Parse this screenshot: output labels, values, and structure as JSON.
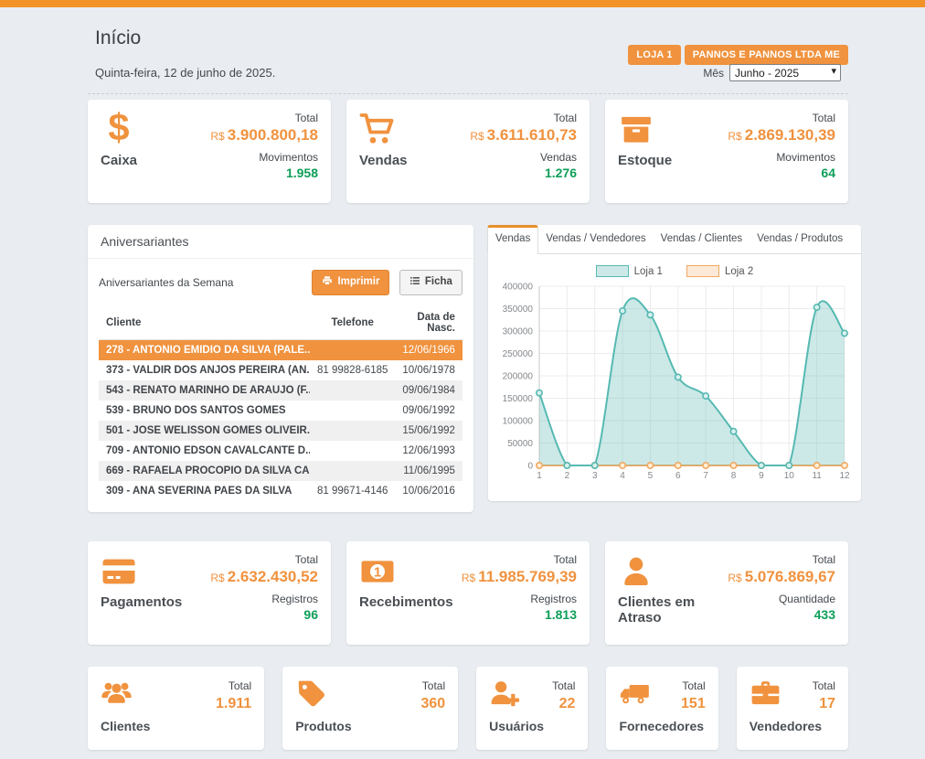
{
  "header": {
    "title": "Início",
    "date": "Quinta-feira, 12 de junho de 2025.",
    "badges": [
      "LOJA 1",
      "PANNOS E PANNOS LTDA ME"
    ],
    "month": {
      "label": "Mês",
      "value": "Junho - 2025"
    }
  },
  "cards_row1": [
    {
      "icon": "dollar-icon",
      "title": "Caixa",
      "total_label": "Total",
      "currency": "R$",
      "total": "3.900.800,18",
      "metric_label": "Movimentos",
      "metric_value": "1.958"
    },
    {
      "icon": "cart-icon",
      "title": "Vendas",
      "total_label": "Total",
      "currency": "R$",
      "total": "3.611.610,73",
      "metric_label": "Vendas",
      "metric_value": "1.276"
    },
    {
      "icon": "archive-icon",
      "title": "Estoque",
      "total_label": "Total",
      "currency": "R$",
      "total": "2.869.130,39",
      "metric_label": "Movimentos",
      "metric_value": "64"
    }
  ],
  "birthdays": {
    "panel_title": "Aniversariantes",
    "subtitle": "Aniversariantes da Semana",
    "print_button": "Imprimir",
    "ficha_button": "Ficha",
    "columns": [
      "Cliente",
      "Telefone",
      "Data de Nasc."
    ],
    "selected_row": 0,
    "rows": [
      {
        "cliente": "278 - ANTONIO EMIDIO DA SILVA (PALE...",
        "telefone": "",
        "data": "12/06/1966"
      },
      {
        "cliente": "373 - VALDIR DOS ANJOS PEREIRA (AN...",
        "telefone": "81 99828-6185",
        "data": "10/06/1978"
      },
      {
        "cliente": "543 - RENATO MARINHO DE ARAUJO (F...",
        "telefone": "",
        "data": "09/06/1984"
      },
      {
        "cliente": "539 - BRUNO DOS SANTOS GOMES",
        "telefone": "",
        "data": "09/06/1992"
      },
      {
        "cliente": "501 - JOSE WELISSON GOMES OLIVEIR...",
        "telefone": "",
        "data": "15/06/1992"
      },
      {
        "cliente": "709 - ANTONIO EDSON CAVALCANTE D...",
        "telefone": "",
        "data": "12/06/1993"
      },
      {
        "cliente": "669 - RAFAELA PROCOPIO DA SILVA CA...",
        "telefone": "",
        "data": "11/06/1995"
      },
      {
        "cliente": "309 - ANA SEVERINA PAES DA SILVA",
        "telefone": "81 99671-4146",
        "data": "10/06/2016"
      }
    ]
  },
  "chart_panel": {
    "tabs": [
      "Vendas",
      "Vendas / Vendedores",
      "Vendas / Clientes",
      "Vendas / Produtos"
    ],
    "active_tab": 0
  },
  "chart_data": {
    "type": "area",
    "x": [
      1,
      2,
      3,
      4,
      5,
      6,
      7,
      8,
      9,
      10,
      11,
      12
    ],
    "series": [
      {
        "name": "Loja 1",
        "values": [
          162000,
          0,
          0,
          345000,
          336000,
          197000,
          155000,
          76000,
          0,
          0,
          353000,
          295000
        ],
        "line_color": "#56b9b2",
        "fill_color": "rgba(109,193,187,0.35)",
        "marker_fill": "#d9f0ee"
      },
      {
        "name": "Loja 2",
        "values": [
          0,
          0,
          0,
          0,
          0,
          0,
          0,
          0,
          0,
          0,
          0,
          0
        ],
        "line_color": "#f3a960",
        "fill_color": "rgba(243,169,96,0.25)",
        "marker_fill": "#fdeed9"
      }
    ],
    "ylim": [
      0,
      400000
    ],
    "ytick_step": 50000,
    "grid": true,
    "legend_position": "top"
  },
  "cards_row2": [
    {
      "icon": "credit-card-icon",
      "title": "Pagamentos",
      "total_label": "Total",
      "currency": "R$",
      "total": "2.632.430,52",
      "metric_label": "Registros",
      "metric_value": "96"
    },
    {
      "icon": "money-bill-icon",
      "title": "Recebimentos",
      "total_label": "Total",
      "currency": "R$",
      "total": "11.985.769,39",
      "metric_label": "Registros",
      "metric_value": "1.813"
    },
    {
      "icon": "user-icon",
      "title": "Clientes em Atraso",
      "total_label": "Total",
      "currency": "R$",
      "total": "5.076.869,67",
      "metric_label": "Quantidade",
      "metric_value": "433"
    }
  ],
  "count_cards": [
    {
      "icon": "users-icon",
      "title": "Clientes",
      "total_label": "Total",
      "value": "1.911"
    },
    {
      "icon": "tag-icon",
      "title": "Produtos",
      "total_label": "Total",
      "value": "360"
    },
    {
      "icon": "user-plus-icon",
      "title": "Usuários",
      "total_label": "Total",
      "value": "22"
    },
    {
      "icon": "truck-icon",
      "title": "Fornecedores",
      "total_label": "Total",
      "value": "151"
    },
    {
      "icon": "briefcase-icon",
      "title": "Vendedores",
      "total_label": "Total",
      "value": "17"
    }
  ],
  "colors": {
    "topbar": "#f29227",
    "accent": "#f0923e",
    "green": "#0e9e58",
    "loja1": "#56b9b2",
    "loja2": "#f3a960",
    "row_highlight": "#f0923e",
    "background": "#e9edf1"
  }
}
